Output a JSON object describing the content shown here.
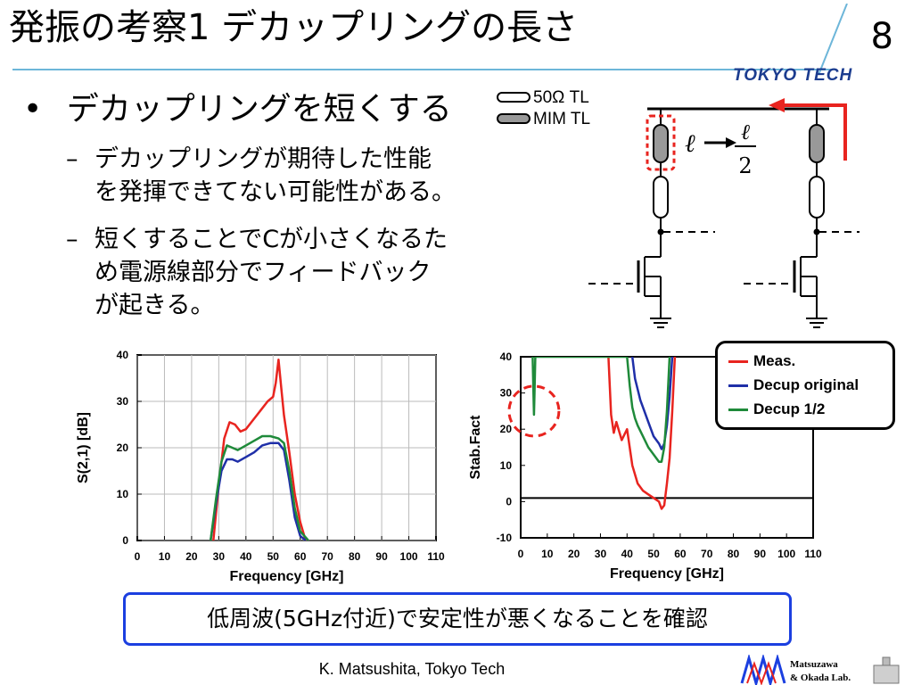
{
  "slide": {
    "title": "発振の考察1 デカップリングの長さ",
    "page_number": "8",
    "logo_text": "TOKYO TECH",
    "footer": "K. Matsushita, Tokyo Tech",
    "lab_logo": [
      "Matsuzawa",
      "& Okada Lab."
    ],
    "colors": {
      "accent_blue": "#1b3fe0",
      "rule": "#6db6d9",
      "meas": "#e8241f",
      "decup_original": "#1f2fa8",
      "decup_half": "#1f8a3a"
    }
  },
  "content": {
    "bullet1": "デカップリングを短くする",
    "bullet1_marker": "•",
    "dash": "–",
    "sub1": "デカップリングが期待した性能\nを発揮できてない可能性がある。",
    "sub2": "短くすることでCが小さくなるた\nめ電源線部分でフィードバック\nが起きる。",
    "conclusion": "低周波(5GHz付近)で安定性が悪くなることを確認"
  },
  "circuit": {
    "legend_tl": "50Ω TL",
    "legend_mim": "MIM TL",
    "length_symbol": "ℓ",
    "fraction_num": "ℓ",
    "fraction_den": "2"
  },
  "legend": {
    "items": [
      {
        "name": "Meas.",
        "color": "#e8241f"
      },
      {
        "name": "Decup original",
        "color": "#1f2fa8"
      },
      {
        "name": "Decup 1/2",
        "color": "#1f8a3a"
      }
    ]
  },
  "chart_data": [
    {
      "type": "line",
      "xlabel": "Frequency [GHz]",
      "ylabel": "S(2,1) [dB]",
      "xlim": [
        0,
        110
      ],
      "ylim": [
        0,
        40
      ],
      "xticks": [
        0,
        10,
        20,
        30,
        40,
        50,
        60,
        70,
        80,
        90,
        100,
        110
      ],
      "yticks": [
        0,
        10,
        20,
        30,
        40
      ],
      "grid": true,
      "series": [
        {
          "name": "Meas.",
          "color": "#e8241f",
          "x": [
            28,
            30,
            32,
            34,
            36,
            38,
            40,
            42,
            44,
            46,
            48,
            50,
            51,
            52,
            53,
            54,
            56,
            58,
            60,
            62
          ],
          "y": [
            0,
            12,
            22,
            25.5,
            25,
            23.5,
            24,
            25.5,
            27,
            28.5,
            30,
            31,
            34,
            39,
            33,
            27,
            19,
            10,
            4,
            0
          ]
        },
        {
          "name": "Decup original",
          "color": "#1f2fa8",
          "x": [
            27,
            29,
            31,
            33,
            35,
            37,
            40,
            43,
            46,
            49,
            52,
            54,
            56,
            58,
            60,
            62
          ],
          "y": [
            0,
            8,
            15,
            17.5,
            17.5,
            17,
            18,
            19,
            20.5,
            21,
            21,
            19.5,
            13,
            5,
            1,
            0
          ]
        },
        {
          "name": "Decup 1/2",
          "color": "#1f8a3a",
          "x": [
            27,
            29,
            31,
            33,
            35,
            37,
            40,
            43,
            46,
            49,
            52,
            54,
            56,
            58,
            60,
            63
          ],
          "y": [
            0,
            9,
            17,
            20.5,
            20,
            19.5,
            20.5,
            21.5,
            22.5,
            22.5,
            22,
            21,
            15,
            7,
            2,
            0
          ]
        }
      ]
    },
    {
      "type": "line",
      "xlabel": "Frequency [GHz]",
      "ylabel": "Stab.Fact",
      "xlim": [
        0,
        110
      ],
      "ylim": [
        -10,
        40
      ],
      "xticks": [
        0,
        10,
        20,
        30,
        40,
        50,
        60,
        70,
        80,
        90,
        100,
        110
      ],
      "yticks": [
        -10,
        0,
        10,
        20,
        30,
        40
      ],
      "grid": false,
      "reference_line": 1,
      "series": [
        {
          "name": "Meas.",
          "color": "#e8241f",
          "x": [
            33,
            34,
            35,
            36,
            38,
            40,
            42,
            44,
            46,
            48,
            50,
            52,
            53,
            54,
            55,
            56,
            57,
            58
          ],
          "y": [
            40,
            24,
            19,
            22,
            17,
            20,
            10,
            5,
            3,
            2,
            1,
            0,
            -2,
            -1,
            5,
            12,
            25,
            40
          ]
        },
        {
          "name": "Decup original",
          "color": "#1f2fa8",
          "x": [
            42,
            43,
            44,
            45,
            46,
            48,
            50,
            52,
            53,
            54,
            55,
            56,
            57
          ],
          "y": [
            40,
            34,
            31,
            28,
            26,
            22,
            18,
            16,
            14.5,
            16,
            21,
            29,
            40
          ]
        },
        {
          "name": "Decup 1/2",
          "color": "#1f8a3a",
          "x": [
            4.5,
            4.8,
            5,
            5.2,
            5.5,
            40,
            41,
            42,
            43,
            44,
            46,
            48,
            50,
            52,
            53,
            54,
            55,
            56
          ],
          "y": [
            40,
            30,
            24,
            30,
            40,
            40,
            32,
            26,
            23,
            21,
            18,
            15,
            13,
            11,
            11,
            15,
            25,
            40
          ]
        }
      ]
    }
  ]
}
